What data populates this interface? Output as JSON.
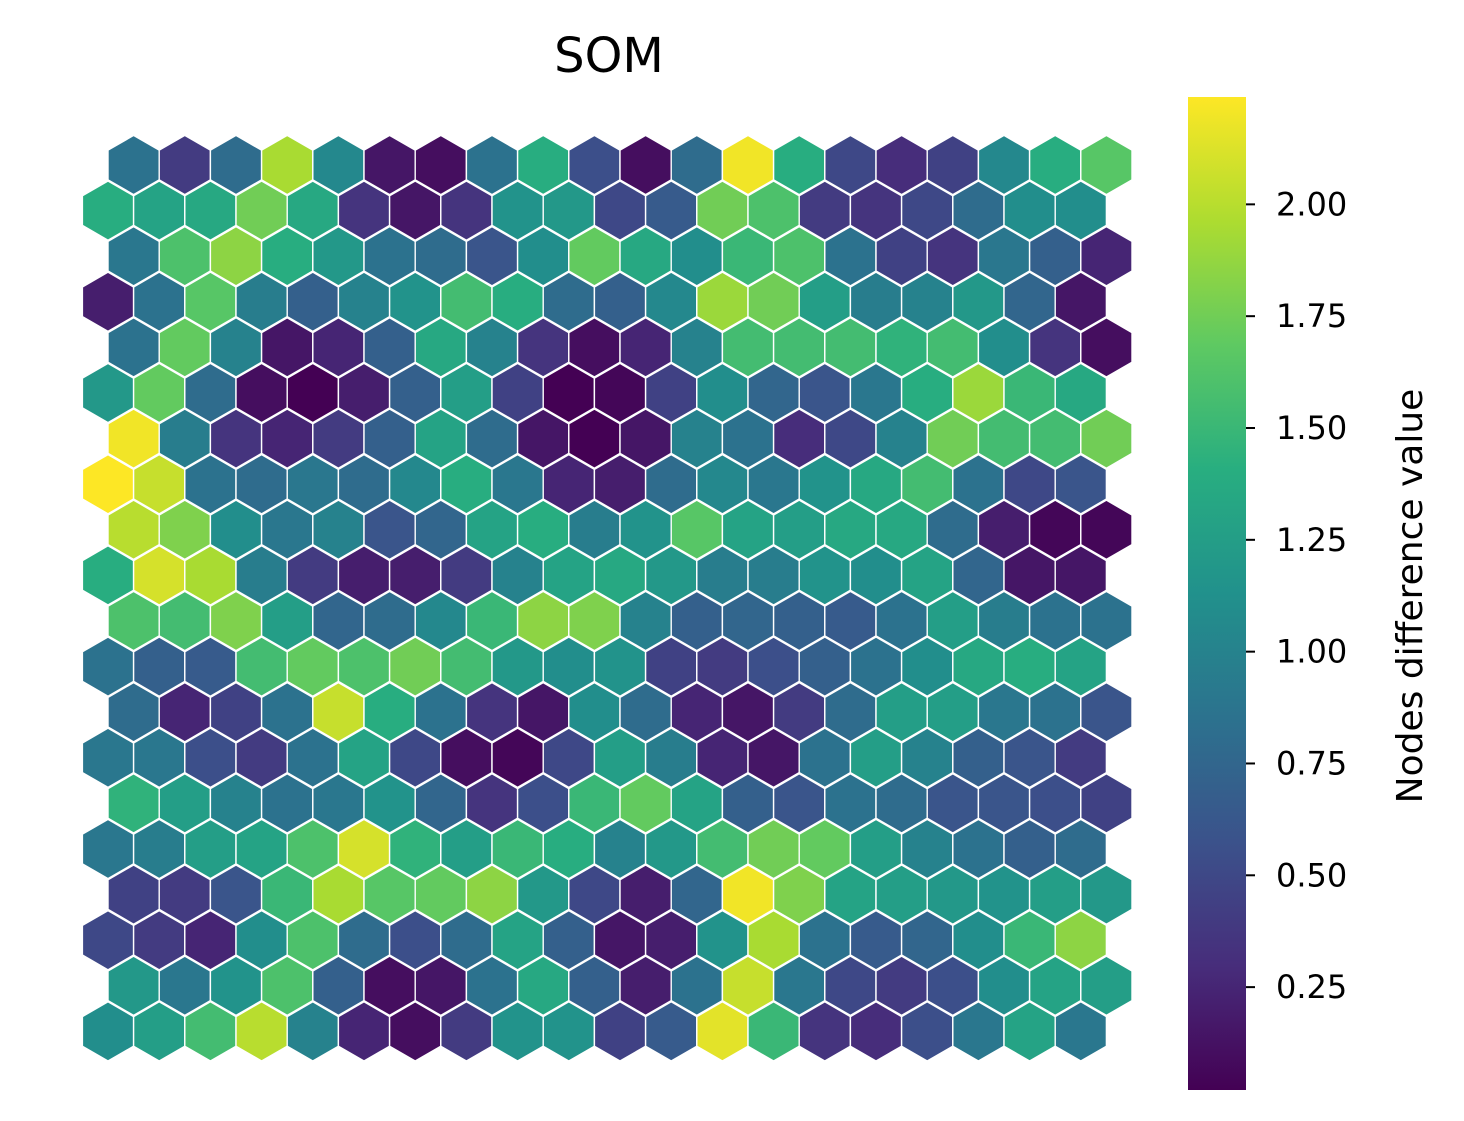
{
  "chart_data": {
    "type": "heatmap",
    "subtype": "hexagonal-som",
    "title": "SOM",
    "grid": false,
    "colormap": "viridis",
    "rows": 20,
    "cols": 20,
    "row_order": "top-to-bottom",
    "layout": "odd rows offset half a cell to the right",
    "values": [
      [
        0.85,
        0.4,
        0.8,
        1.95,
        1.05,
        0.15,
        0.1,
        0.85,
        1.4,
        0.55,
        0.1,
        0.8,
        2.2,
        1.4,
        0.5,
        0.3,
        0.45,
        1.05,
        1.4,
        1.65
      ],
      [
        1.4,
        1.3,
        1.35,
        1.75,
        1.35,
        0.35,
        0.15,
        0.35,
        1.15,
        1.2,
        0.5,
        0.65,
        1.75,
        1.6,
        0.4,
        0.35,
        0.5,
        0.8,
        1.1,
        1.1
      ],
      [
        0.9,
        1.6,
        1.85,
        1.4,
        1.2,
        0.85,
        0.8,
        0.6,
        1.1,
        1.7,
        1.35,
        1.1,
        1.5,
        1.6,
        0.85,
        0.45,
        0.35,
        0.9,
        0.7,
        0.25
      ],
      [
        0.2,
        0.85,
        1.65,
        0.95,
        0.7,
        1.0,
        1.15,
        1.55,
        1.4,
        0.8,
        0.7,
        1.05,
        1.9,
        1.75,
        1.25,
        0.95,
        1.0,
        1.2,
        0.75,
        0.15
      ],
      [
        0.85,
        1.7,
        1.0,
        0.15,
        0.25,
        0.7,
        1.35,
        1.0,
        0.35,
        0.1,
        0.25,
        1.0,
        1.55,
        1.55,
        1.55,
        1.45,
        1.55,
        1.1,
        0.35,
        0.1
      ],
      [
        1.2,
        1.7,
        0.8,
        0.1,
        0.02,
        0.2,
        0.7,
        1.25,
        0.45,
        0.02,
        0.05,
        0.45,
        1.1,
        0.75,
        0.6,
        0.9,
        1.4,
        1.9,
        1.5,
        1.35
      ],
      [
        2.2,
        0.95,
        0.35,
        0.25,
        0.4,
        0.7,
        1.3,
        0.8,
        0.15,
        0.02,
        0.15,
        1.0,
        0.85,
        0.3,
        0.5,
        1.0,
        1.75,
        1.55,
        1.55,
        1.75
      ],
      [
        2.25,
        2.05,
        0.85,
        0.8,
        0.9,
        0.8,
        1.05,
        1.4,
        0.9,
        0.25,
        0.2,
        0.8,
        1.05,
        0.9,
        1.15,
        1.35,
        1.55,
        0.85,
        0.5,
        0.6
      ],
      [
        2.0,
        1.8,
        1.1,
        0.9,
        1.0,
        0.6,
        0.75,
        1.3,
        1.4,
        0.95,
        1.15,
        1.65,
        1.3,
        1.25,
        1.35,
        1.35,
        0.8,
        0.2,
        0.05,
        0.05
      ],
      [
        1.4,
        2.1,
        1.95,
        0.95,
        0.4,
        0.2,
        0.2,
        0.4,
        1.0,
        1.3,
        1.35,
        1.2,
        0.95,
        0.95,
        1.15,
        1.1,
        1.3,
        0.75,
        0.15,
        0.15
      ],
      [
        1.6,
        1.55,
        1.8,
        1.25,
        0.75,
        0.8,
        1.05,
        1.5,
        1.85,
        1.8,
        1.0,
        0.7,
        0.75,
        0.7,
        0.65,
        0.85,
        1.25,
        0.95,
        0.85,
        0.85
      ],
      [
        0.85,
        0.7,
        0.65,
        1.55,
        1.7,
        1.6,
        1.75,
        1.55,
        1.2,
        1.1,
        1.15,
        0.45,
        0.4,
        0.55,
        0.7,
        0.85,
        1.1,
        1.35,
        1.4,
        1.3
      ],
      [
        0.8,
        0.25,
        0.45,
        0.85,
        2.05,
        1.4,
        0.85,
        0.35,
        0.15,
        1.1,
        0.8,
        0.25,
        0.15,
        0.4,
        0.8,
        1.25,
        1.25,
        0.9,
        0.85,
        0.6
      ],
      [
        0.9,
        0.9,
        0.55,
        0.4,
        0.85,
        1.3,
        0.5,
        0.1,
        0.05,
        0.5,
        1.25,
        0.95,
        0.25,
        0.15,
        0.85,
        1.25,
        1.0,
        0.7,
        0.6,
        0.4
      ],
      [
        1.45,
        1.25,
        1.0,
        0.85,
        0.9,
        1.15,
        0.75,
        0.35,
        0.55,
        1.5,
        1.7,
        1.3,
        0.7,
        0.6,
        0.85,
        0.8,
        0.6,
        0.6,
        0.55,
        0.45
      ],
      [
        0.9,
        0.95,
        1.25,
        1.3,
        1.6,
        2.1,
        1.45,
        1.25,
        1.5,
        1.4,
        1.0,
        1.2,
        1.55,
        1.75,
        1.7,
        1.25,
        1.0,
        0.85,
        0.7,
        0.8
      ],
      [
        0.45,
        0.4,
        0.6,
        1.5,
        1.95,
        1.65,
        1.7,
        1.85,
        1.2,
        0.5,
        0.2,
        0.75,
        2.2,
        1.8,
        1.3,
        1.25,
        1.2,
        1.15,
        1.25,
        1.2
      ],
      [
        0.5,
        0.4,
        0.25,
        1.1,
        1.6,
        0.8,
        0.55,
        0.8,
        1.3,
        0.7,
        0.15,
        0.2,
        1.15,
        1.95,
        0.85,
        0.65,
        0.75,
        1.1,
        1.5,
        1.85
      ],
      [
        1.2,
        0.9,
        1.15,
        1.6,
        0.7,
        0.1,
        0.15,
        0.85,
        1.35,
        0.7,
        0.2,
        0.85,
        2.05,
        0.9,
        0.5,
        0.4,
        0.55,
        1.1,
        1.3,
        1.25
      ],
      [
        1.1,
        1.25,
        1.55,
        2.0,
        1.0,
        0.25,
        0.1,
        0.4,
        1.15,
        1.15,
        0.45,
        0.65,
        2.15,
        1.5,
        0.35,
        0.3,
        0.55,
        0.9,
        1.3,
        0.9
      ]
    ],
    "colorbar": {
      "label": "Nodes difference value",
      "min": 0.02,
      "max": 2.24,
      "ticks": [
        "0.25",
        "0.50",
        "0.75",
        "1.00",
        "1.25",
        "1.50",
        "1.75",
        "2.00"
      ]
    }
  }
}
